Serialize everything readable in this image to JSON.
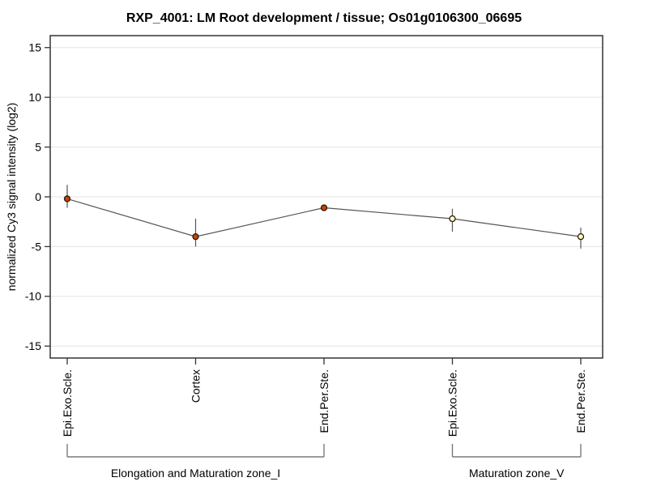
{
  "chart_data": {
    "type": "line",
    "title": "RXP_4001: LM Root development / tissue; Os01g0106300_06695",
    "ylabel": "normalized Cy3 signal intensity (log2)",
    "xlabel": "",
    "ylim": [
      -16.2,
      16.2
    ],
    "yticks": [
      15,
      10,
      5,
      0,
      -5,
      -10,
      -15
    ],
    "ytick_labels": [
      "15",
      "10",
      "5",
      "0",
      "-5",
      "-10",
      "-15"
    ],
    "grid": true,
    "legend": "none",
    "categories": [
      "Epi.Exo.Scle.",
      "Cortex",
      "End.Per.Ste.",
      "Epi.Exo.Scle.",
      "End.Per.Ste."
    ],
    "series": [
      {
        "name": "normalized Cy3 signal intensity (log2)",
        "points": [
          {
            "category": "Epi.Exo.Scle.",
            "mean": -0.2,
            "err_low": -1.1,
            "err_high": 1.2,
            "marker": "filled"
          },
          {
            "category": "Cortex",
            "mean": -4.0,
            "err_low": -5.0,
            "err_high": -2.2,
            "marker": "filled"
          },
          {
            "category": "End.Per.Ste.",
            "mean": -1.1,
            "err_low": -1.4,
            "err_high": -0.8,
            "marker": "filled"
          },
          {
            "category": "Epi.Exo.Scle.",
            "mean": -2.2,
            "err_low": -3.5,
            "err_high": -1.2,
            "marker": "open"
          },
          {
            "category": "End.Per.Ste.",
            "mean": -4.0,
            "err_low": -5.2,
            "err_high": -3.1,
            "marker": "open"
          }
        ]
      }
    ],
    "groups": [
      {
        "label": "Elongation and Maturation zone_I",
        "from": 0,
        "to": 2
      },
      {
        "label": "Maturation zone_V",
        "from": 3,
        "to": 4
      }
    ],
    "colors": {
      "marker_filled_fill": "#cc4000",
      "marker_open_fill": "#ffffcc",
      "marker_stroke": "#261c08",
      "line": "#555555",
      "error_bar": "#555555",
      "grid": "#e3e3e3",
      "border": "#333333",
      "tick": "#333333",
      "bracket": "#7a7a7a",
      "text": "#000000"
    }
  }
}
